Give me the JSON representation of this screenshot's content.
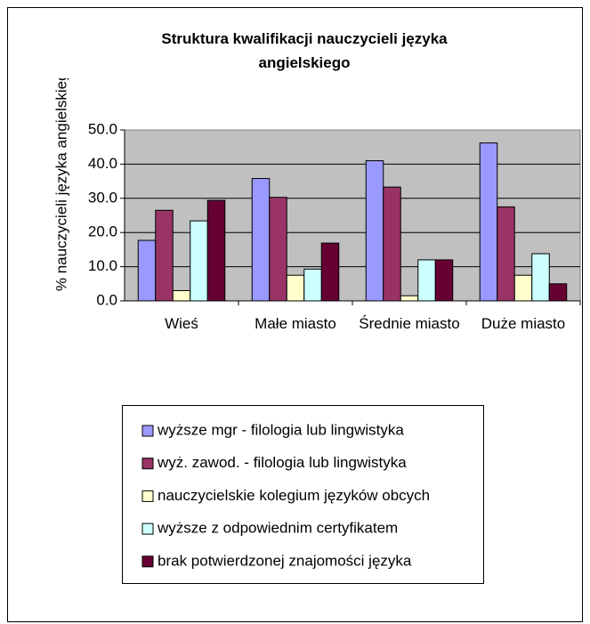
{
  "chart_data": {
    "type": "bar",
    "title": "Struktura kwalifikacji nauczycieli języka angielskiego",
    "y_label": "% nauczycieli języka angielskiego",
    "categories": [
      "Wieś",
      "Małe miasto",
      "Średnie miasto",
      "Duże miasto"
    ],
    "series": [
      {
        "name": "wyższe mgr - filologia lub lingwistyka",
        "color": "#9999ff",
        "values": [
          17.7,
          35.8,
          41.0,
          46.2
        ]
      },
      {
        "name": "wyż. zawod. - filologia lub lingwistyka",
        "color": "#993366",
        "values": [
          26.5,
          30.3,
          33.3,
          27.5
        ]
      },
      {
        "name": "nauczycielskie kolegium języków obcych",
        "color": "#ffffcc",
        "values": [
          3.0,
          7.5,
          1.5,
          7.5
        ]
      },
      {
        "name": "wyższe z odpowiednim certyfikatem",
        "color": "#ccffff",
        "values": [
          23.4,
          9.3,
          12.0,
          13.8
        ]
      },
      {
        "name": "brak potwierdzonej znajomości języka",
        "color": "#660033",
        "values": [
          29.4,
          16.9,
          12.0,
          5.0
        ]
      }
    ],
    "ylim": [
      0,
      50
    ],
    "yticks": [
      {
        "value": 0,
        "label": "0.0"
      },
      {
        "value": 10,
        "label": "10.0"
      },
      {
        "value": 20,
        "label": "20.0"
      },
      {
        "value": 30,
        "label": "30.0"
      },
      {
        "value": 40,
        "label": "40.0"
      },
      {
        "value": 50,
        "label": "50.0"
      }
    ],
    "grid": true,
    "legend": "bottom"
  }
}
